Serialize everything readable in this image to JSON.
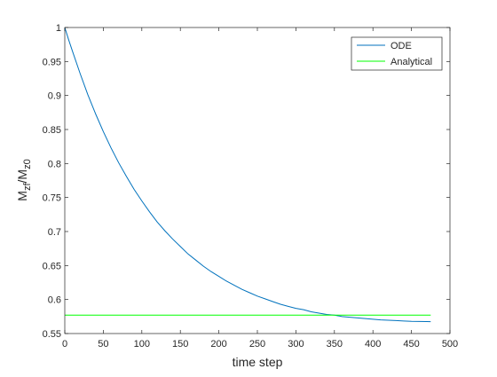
{
  "chart_data": {
    "type": "line",
    "title": "",
    "xlabel": "time step",
    "ylabel_main": "M",
    "ylabel_sub1": "zf",
    "ylabel_mid": "/M",
    "ylabel_sub2": "z0",
    "xlim": [
      0,
      500
    ],
    "ylim": [
      0.55,
      1
    ],
    "xticks": [
      0,
      50,
      100,
      150,
      200,
      250,
      300,
      350,
      400,
      450,
      500
    ],
    "xtick_labels": [
      "0",
      "50",
      "100",
      "150",
      "200",
      "250",
      "300",
      "350",
      "400",
      "450",
      "500"
    ],
    "yticks": [
      0.55,
      0.6,
      0.65,
      0.7,
      0.75,
      0.8,
      0.85,
      0.9,
      0.95,
      1
    ],
    "ytick_labels": [
      "0.55",
      "0.6",
      "0.65",
      "0.7",
      "0.75",
      "0.8",
      "0.85",
      "0.9",
      "0.95",
      "1"
    ],
    "grid": false,
    "legend_position": "top-right",
    "series": [
      {
        "name": "ODE",
        "color": "#0072BD",
        "x": [
          0,
          5,
          10,
          20,
          30,
          40,
          50,
          60,
          70,
          80,
          90,
          100,
          110,
          120,
          130,
          140,
          150,
          160,
          170,
          180,
          190,
          200,
          210,
          220,
          230,
          240,
          250,
          260,
          270,
          280,
          290,
          300,
          310,
          320,
          330,
          340,
          350,
          360,
          370,
          380,
          390,
          400,
          410,
          420,
          430,
          440,
          450,
          460,
          470,
          475
        ],
        "y": [
          1.0,
          0.982,
          0.965,
          0.932,
          0.901,
          0.873,
          0.847,
          0.823,
          0.801,
          0.781,
          0.762,
          0.745,
          0.729,
          0.714,
          0.701,
          0.689,
          0.678,
          0.667,
          0.658,
          0.649,
          0.641,
          0.634,
          0.627,
          0.621,
          0.615,
          0.61,
          0.605,
          0.601,
          0.597,
          0.593,
          0.59,
          0.587,
          0.585,
          0.582,
          0.58,
          0.578,
          0.577,
          0.575,
          0.574,
          0.573,
          0.572,
          0.571,
          0.57,
          0.5695,
          0.569,
          0.5685,
          0.568,
          0.5678,
          0.5676,
          0.5675
        ]
      },
      {
        "name": "Analytical",
        "color": "#00FF00",
        "x": [
          0,
          475
        ],
        "y": [
          0.577,
          0.577
        ]
      }
    ]
  }
}
